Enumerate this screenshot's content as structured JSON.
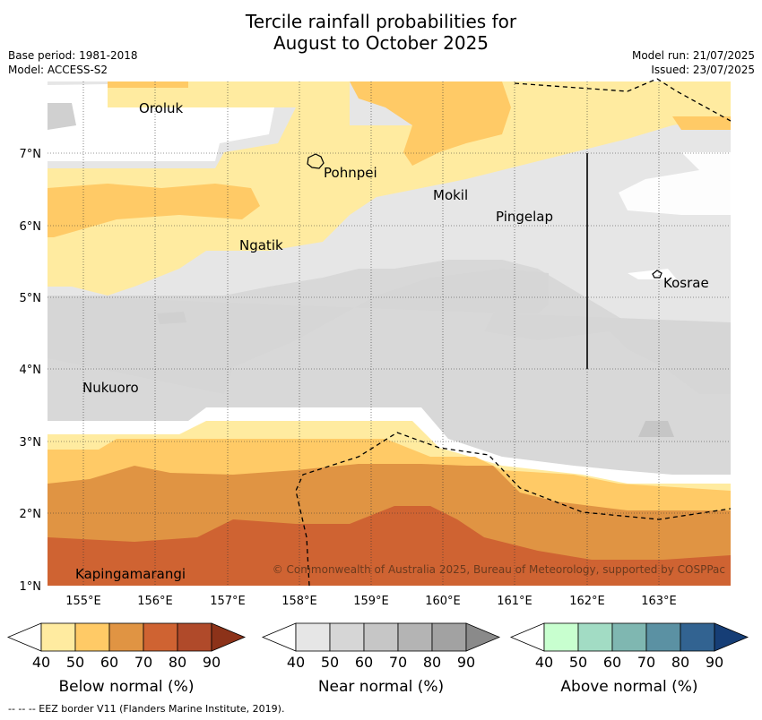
{
  "title": {
    "line1": "Tercile rainfall probabilities for",
    "line2": "August to October 2025"
  },
  "meta": {
    "base_period": "Base period: 1981-2018",
    "model": "Model: ACCESS-S2",
    "model_run": "Model run: 21/07/2025",
    "issued": "Issued: 23/07/2025"
  },
  "map": {
    "lat_labels": [
      "7°N",
      "6°N",
      "5°N",
      "4°N",
      "3°N",
      "2°N",
      "1°N"
    ],
    "lon_labels": [
      "155°E",
      "156°E",
      "157°E",
      "158°E",
      "159°E",
      "160°E",
      "161°E",
      "162°E",
      "163°E"
    ],
    "places": [
      "Oroluk",
      "Pohnpei",
      "Mokil",
      "Pingelap",
      "Ngatik",
      "Kosrae",
      "Nukuoro",
      "Kapingamarangi"
    ],
    "copyright": "© Commonwealth of Australia 2025, Bureau of Meteorology, supported by COSPPac"
  },
  "colorbars": [
    {
      "title": "Below normal (%)",
      "ticks": [
        "40",
        "50",
        "60",
        "70",
        "80",
        "90"
      ],
      "colors": [
        "#ffeba0",
        "#ffca66",
        "#e09443",
        "#cf6332",
        "#b04a2a",
        "#8c3219"
      ]
    },
    {
      "title": "Near normal (%)",
      "ticks": [
        "40",
        "50",
        "60",
        "70",
        "80",
        "90"
      ],
      "colors": [
        "#e6e6e6",
        "#d6d6d6",
        "#c6c6c6",
        "#b4b4b4",
        "#a2a2a2",
        "#8a8a8a"
      ]
    },
    {
      "title": "Above normal (%)",
      "ticks": [
        "40",
        "50",
        "60",
        "70",
        "80",
        "90"
      ],
      "colors": [
        "#c8ffcf",
        "#a2dcc4",
        "#7fb7b1",
        "#5b91a3",
        "#326391",
        "#163e76"
      ]
    }
  ],
  "footer": "--  --  -- EEZ border V11 (Flanders Marine Institute, 2019)."
}
